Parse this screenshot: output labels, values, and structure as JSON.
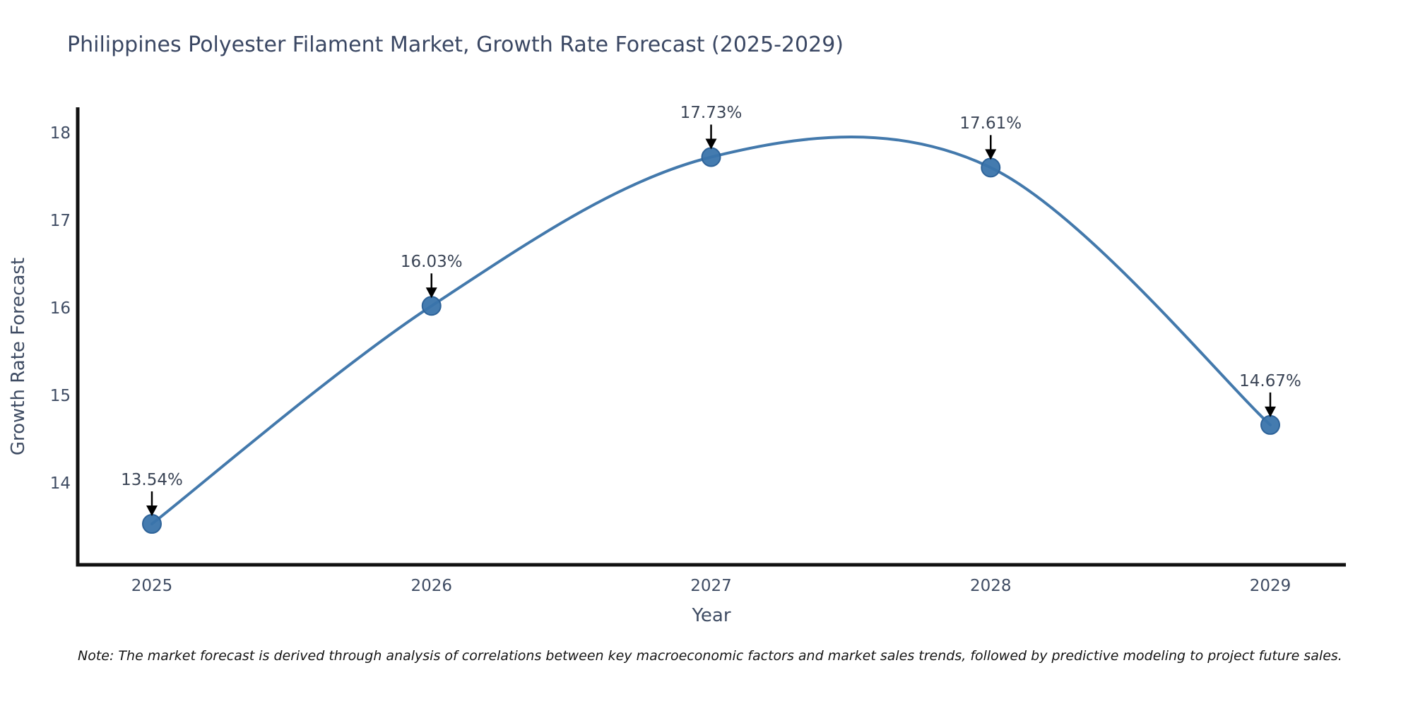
{
  "title": "Philippines Polyester Filament Market, Growth Rate Forecast (2025-2029)",
  "note": "Note: The market forecast is derived through analysis of correlations between key macroeconomic factors and market sales trends, followed by predictive modeling to project future sales.",
  "colors": {
    "line": "#4379ac",
    "marker_fill": "#3a74ab",
    "marker_edge": "#2e6399",
    "spine": "#111111",
    "arrow": "#000000",
    "title_text": "#3a4763",
    "axis_text": "#3f4c63",
    "note_text": "#141414"
  },
  "chart_data": {
    "type": "line",
    "title": "Philippines Polyester Filament Market, Growth Rate Forecast (2025-2029)",
    "xlabel": "Year",
    "ylabel": "Growth Rate Forecast",
    "x": [
      2025,
      2026,
      2027,
      2028,
      2029
    ],
    "series": [
      {
        "name": "Growth Rate Forecast",
        "values": [
          13.54,
          16.03,
          17.73,
          17.61,
          14.67
        ]
      }
    ],
    "data_labels": [
      "13.54%",
      "16.03%",
      "17.73%",
      "17.61%",
      "14.67%"
    ],
    "yticks": [
      14,
      15,
      16,
      17,
      18
    ],
    "ylim": [
      13.05,
      18.3
    ],
    "grid": false,
    "legend": false,
    "line_shape": "spline",
    "markers": true,
    "annotations_arrows": true
  }
}
